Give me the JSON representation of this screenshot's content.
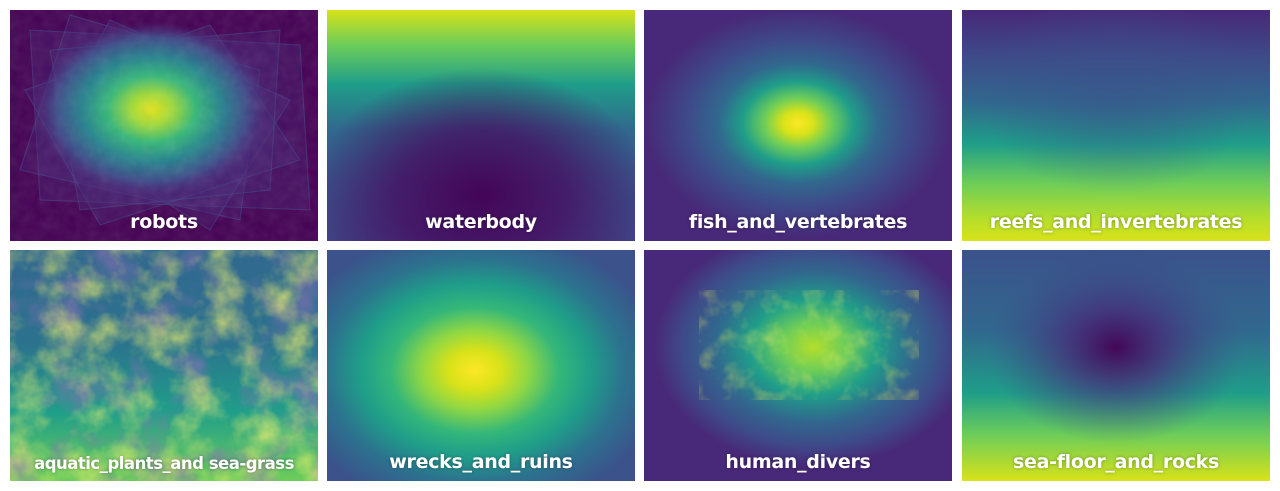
{
  "colormap": {
    "name": "viridis",
    "stops": [
      "#440154",
      "#482878",
      "#3e4a89",
      "#31688e",
      "#26828e",
      "#1f9e89",
      "#35b779",
      "#6dcd59",
      "#b4de2c",
      "#fde725"
    ]
  },
  "tiles": [
    {
      "label": "robots",
      "pattern": "scribble-blob"
    },
    {
      "label": "waterbody",
      "pattern": "top-gradient-arch"
    },
    {
      "label": "fish_and_vertebrates",
      "pattern": "center-hotspot"
    },
    {
      "label": "reefs_and_invertebrates",
      "pattern": "bottom-gradient"
    },
    {
      "label": "aquatic_plants_and sea-grass",
      "pattern": "noisy-bottom"
    },
    {
      "label": "wrecks_and_ruins",
      "pattern": "center-large"
    },
    {
      "label": "human_divers",
      "pattern": "noisy-center"
    },
    {
      "label": "sea-floor_and_rocks",
      "pattern": "bottom-bright-center-dark"
    }
  ]
}
